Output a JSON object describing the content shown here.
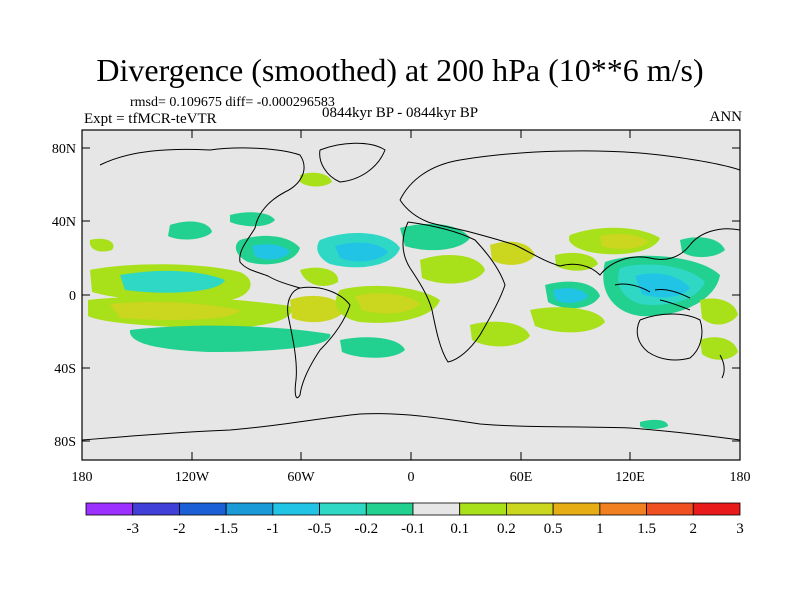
{
  "title": "Divergence (smoothed) at 200 hPa (10**6 m/s)",
  "rmsd_line": "rmsd= 0.109675 diff= -0.000296583",
  "experiment": "Expt = tfMCR-teVTR",
  "period": "0844kyr BP - 0844kyr BP",
  "season": "ANN",
  "map": {
    "projection": "cylindrical equidistant",
    "lat_ticks": [
      "80N",
      "40N",
      "0",
      "40S",
      "80S"
    ],
    "lon_ticks": [
      "180",
      "120W",
      "60W",
      "0",
      "60E",
      "120E",
      "180"
    ],
    "background_color": "#e6e6e6"
  },
  "colorbar": {
    "labels": [
      "-3",
      "-2",
      "-1.5",
      "-1",
      "-0.5",
      "-0.2",
      "-0.1",
      "0.1",
      "0.2",
      "0.5",
      "1",
      "1.5",
      "2",
      "3"
    ],
    "colors": [
      "#9b30ff",
      "#4040d8",
      "#1a5fd6",
      "#1a9ad6",
      "#22c4e6",
      "#2ed8c4",
      "#22d08f",
      "#e6e6e6",
      "#a8e01a",
      "#cbd61e",
      "#e6ad14",
      "#f08020",
      "#f04f20",
      "#e81a1a"
    ]
  },
  "shading_levels": {
    "neg_weak": "#22d08f",
    "neg_mid": "#2ed8c4",
    "neg_strong": "#22c4e6",
    "pos_weak": "#a8e01a",
    "pos_mid": "#cbd61e",
    "pos_strong": "#e6ad14"
  }
}
